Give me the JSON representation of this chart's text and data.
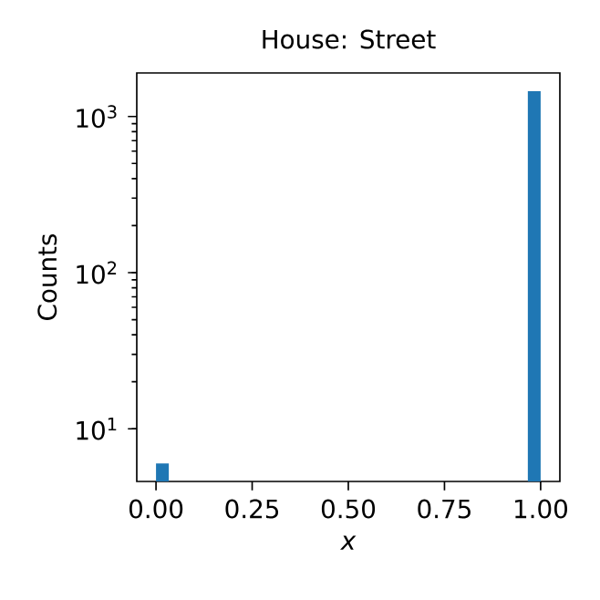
{
  "chart_data": {
    "type": "histogram",
    "title": "House: Street",
    "xlabel": "x",
    "ylabel": "Counts",
    "color": "#1f77b4",
    "log": "y",
    "bins": [
      0,
      0.0333,
      0.0667,
      0.1,
      0.1333,
      0.1667,
      0.2,
      0.2333,
      0.2667,
      0.3,
      0.3333,
      0.3667,
      0.4,
      0.4333,
      0.4667,
      0.5,
      0.5333,
      0.5667,
      0.6,
      0.6333,
      0.6667,
      0.7,
      0.7333,
      0.7667,
      0.8,
      0.8333,
      0.8667,
      0.9,
      0.9333,
      0.9667,
      1
    ],
    "values": [
      6,
      null,
      null,
      null,
      null,
      null,
      null,
      null,
      null,
      null,
      null,
      null,
      null,
      null,
      null,
      null,
      null,
      null,
      null,
      null,
      null,
      null,
      null,
      null,
      null,
      null,
      null,
      null,
      null,
      1450
    ],
    "xlim": [
      -0.05,
      1.05
    ],
    "xticks": [
      {
        "value": 0,
        "label": "0.00"
      },
      {
        "value": 0.25,
        "label": "0.25"
      },
      {
        "value": 0.5,
        "label": "0.50"
      },
      {
        "value": 0.75,
        "label": "0.75"
      },
      {
        "value": 1,
        "label": "1.00"
      }
    ],
    "ylim": [
      4.6,
      1900
    ],
    "yticks": [
      {
        "value": 10,
        "label": "10$^{1}$"
      },
      {
        "value": 100,
        "label": "10$^{2}$"
      },
      {
        "value": 1000,
        "label": "10$^{3}$"
      }
    ],
    "grid": false
  }
}
